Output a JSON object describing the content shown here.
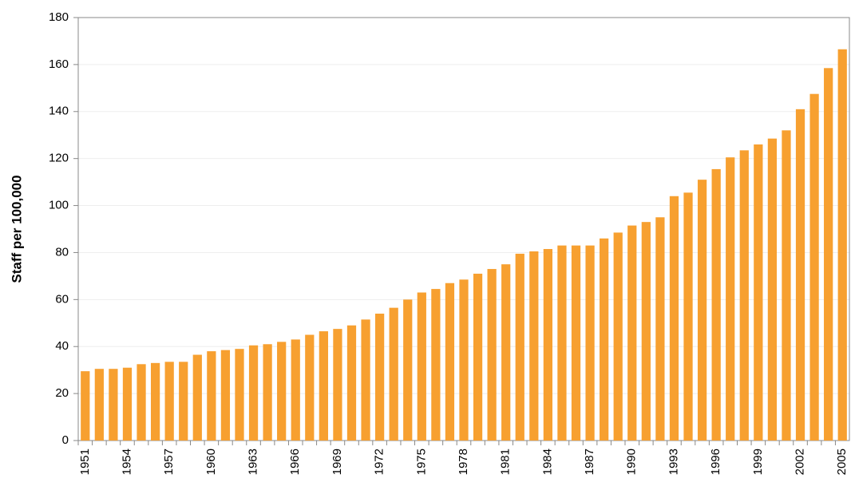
{
  "chart_data": {
    "type": "bar",
    "y_label": "Staff per 100,000",
    "categories": [
      "1951",
      null,
      null,
      "1954",
      null,
      null,
      "1957",
      null,
      null,
      "1960",
      null,
      null,
      "1963",
      null,
      null,
      "1966",
      null,
      null,
      "1969",
      null,
      null,
      "1972",
      null,
      null,
      "1975",
      null,
      null,
      "1978",
      null,
      null,
      "1981",
      null,
      null,
      "1984",
      null,
      null,
      "1987",
      null,
      null,
      "1990",
      null,
      null,
      "1993",
      null,
      null,
      "1996",
      null,
      null,
      "1999",
      null,
      null,
      "2002",
      null,
      null,
      "2005"
    ],
    "values": [
      29.5,
      30.5,
      30.5,
      31,
      32.5,
      33,
      33.5,
      33.5,
      36.5,
      38,
      38.5,
      39,
      40.5,
      41,
      42,
      43,
      45,
      46.5,
      47.5,
      49,
      51.5,
      54,
      56.5,
      60,
      63,
      64.5,
      67,
      68.5,
      71,
      73,
      75,
      79.5,
      80.5,
      81.5,
      83,
      83,
      83,
      86,
      88.5,
      91.5,
      93,
      95,
      104,
      105.5,
      111,
      115.5,
      120.5,
      123.5,
      126,
      128.5,
      132,
      141,
      147.5,
      158.5,
      166.5
    ],
    "color": "#f7a030",
    "ylim": [
      0,
      180
    ],
    "yticks": [
      0,
      20,
      40,
      60,
      80,
      100,
      120,
      140,
      160,
      180
    ],
    "grid": true
  }
}
